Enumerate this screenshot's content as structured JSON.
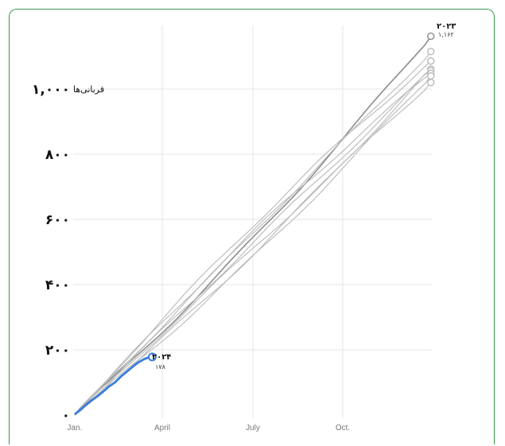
{
  "chart_data": {
    "type": "line",
    "x_ticks": [
      "Jan.",
      "April",
      "July",
      "Oct."
    ],
    "y_ticks": [
      "۰",
      "۲۰۰",
      "۴۰۰",
      "۶۰۰",
      "۸۰۰",
      "۱,۰۰۰"
    ],
    "y_unit": "قربانی‌ها",
    "ylim": [
      0,
      1170
    ],
    "xlim_days": [
      1,
      365
    ],
    "grid": true,
    "series_color_history": "#b9b9b9",
    "series_color_highlight_prev": "#8c8c8c",
    "series_color_current": "#3b7ddd",
    "history_end_values": [
      1162,
      1115,
      1086,
      1061,
      1056,
      1048,
      1040,
      1020
    ],
    "history_end_points": [
      {
        "year_label": "۲۰۲۳",
        "value_label": "۱,۱۶۲"
      }
    ],
    "current_series": {
      "year_label": "۲۰۲۴",
      "value_label": "۱۷۸",
      "x_days": [
        1,
        6,
        12,
        18,
        24,
        30,
        36,
        42,
        48,
        54,
        60,
        66,
        72,
        78,
        80
      ],
      "values": [
        2,
        15,
        30,
        45,
        57,
        72,
        88,
        100,
        118,
        133,
        148,
        162,
        172,
        178,
        178
      ]
    }
  }
}
